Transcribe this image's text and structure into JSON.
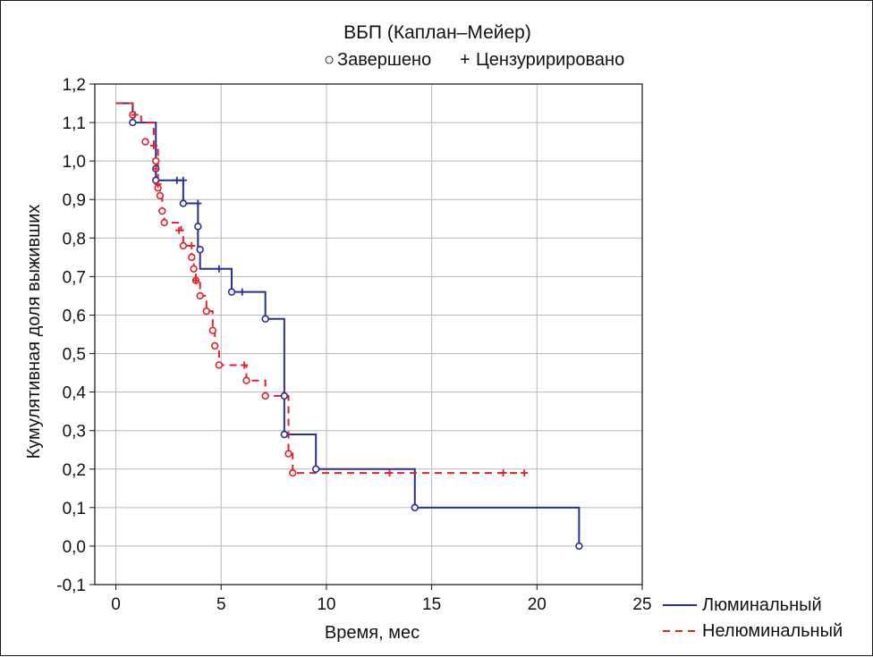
{
  "chart_data": {
    "type": "line",
    "subtype": "kaplan-meier-step",
    "title": "ВБП (Каплан–Мейер)",
    "marker_legend": {
      "completed": {
        "symbol": "○",
        "label": "Завершено"
      },
      "censored": {
        "symbol": "+",
        "label": "Цензуририровано"
      }
    },
    "xlabel": "Время, мес",
    "ylabel": "Кумулятивная доля выживших",
    "xlim": [
      -1,
      25
    ],
    "ylim": [
      -0.1,
      1.2
    ],
    "x_ticks": [
      0,
      5,
      10,
      15,
      20,
      25
    ],
    "x_tick_labels": [
      "0",
      "5",
      "10",
      "15",
      "20",
      "25"
    ],
    "y_ticks": [
      -0.1,
      0,
      0.1,
      0.2,
      0.3,
      0.4,
      0.5,
      0.6,
      0.7,
      0.8,
      0.9,
      1.0,
      1.1,
      1.2
    ],
    "y_tick_labels": [
      "-0,1",
      "0,0",
      "0,1",
      "0,2",
      "0,3",
      "0,4",
      "0,5",
      "0,6",
      "0,7",
      "0,8",
      "0,9",
      "1,0",
      "1,1",
      "1,2"
    ],
    "grid": true,
    "legend_position": "bottom-right",
    "series": [
      {
        "name": "Люминальный",
        "color": "#2b2f8f",
        "dash": "solid",
        "steps": [
          [
            0,
            1.15
          ],
          [
            0.8,
            1.1
          ],
          [
            1.9,
            0.95
          ],
          [
            3.2,
            0.89
          ],
          [
            3.9,
            0.77
          ],
          [
            4.0,
            0.72
          ],
          [
            5.5,
            0.66
          ],
          [
            7.1,
            0.59
          ],
          [
            8.0,
            0.39
          ],
          [
            8.0,
            0.29
          ],
          [
            9.5,
            0.2
          ],
          [
            14.2,
            0.1
          ],
          [
            22.0,
            0.0
          ]
        ],
        "end_x": 22.0,
        "events": [
          [
            0.8,
            1.1
          ],
          [
            1.9,
            0.98
          ],
          [
            1.9,
            0.95
          ],
          [
            3.2,
            0.89
          ],
          [
            3.9,
            0.83
          ],
          [
            4.0,
            0.77
          ],
          [
            5.5,
            0.66
          ],
          [
            7.1,
            0.59
          ],
          [
            8.0,
            0.39
          ],
          [
            8.0,
            0.29
          ],
          [
            9.5,
            0.2
          ],
          [
            14.2,
            0.1
          ],
          [
            22.0,
            0.0
          ]
        ],
        "censored": [
          [
            1.9,
            1.0
          ],
          [
            2.9,
            0.95
          ],
          [
            3.2,
            0.95
          ],
          [
            3.9,
            0.89
          ],
          [
            4.9,
            0.72
          ],
          [
            6.0,
            0.66
          ]
        ]
      },
      {
        "name": "Нелюминальный",
        "color": "#e0202a",
        "dash": "dashed",
        "steps": [
          [
            0,
            1.15
          ],
          [
            0.8,
            1.12
          ],
          [
            1.2,
            1.1
          ],
          [
            1.8,
            1.04
          ],
          [
            2.0,
            0.97
          ],
          [
            2.0,
            0.93
          ],
          [
            2.1,
            0.91
          ],
          [
            2.2,
            0.87
          ],
          [
            2.3,
            0.84
          ],
          [
            3.1,
            0.82
          ],
          [
            3.2,
            0.78
          ],
          [
            3.6,
            0.75
          ],
          [
            3.7,
            0.72
          ],
          [
            3.8,
            0.69
          ],
          [
            4.0,
            0.65
          ],
          [
            4.3,
            0.61
          ],
          [
            4.6,
            0.56
          ],
          [
            4.7,
            0.52
          ],
          [
            4.9,
            0.47
          ],
          [
            6.2,
            0.43
          ],
          [
            7.1,
            0.39
          ],
          [
            8.2,
            0.24
          ],
          [
            8.4,
            0.19
          ]
        ],
        "end_x": 19.4,
        "events": [
          [
            0.8,
            1.12
          ],
          [
            1.4,
            1.05
          ],
          [
            1.9,
            1.0
          ],
          [
            2.0,
            0.93
          ],
          [
            2.1,
            0.91
          ],
          [
            2.2,
            0.87
          ],
          [
            2.3,
            0.84
          ],
          [
            3.2,
            0.78
          ],
          [
            3.6,
            0.75
          ],
          [
            3.7,
            0.72
          ],
          [
            3.8,
            0.69
          ],
          [
            4.0,
            0.65
          ],
          [
            4.3,
            0.61
          ],
          [
            4.6,
            0.56
          ],
          [
            4.7,
            0.52
          ],
          [
            4.9,
            0.47
          ],
          [
            6.2,
            0.43
          ],
          [
            7.1,
            0.39
          ],
          [
            8.2,
            0.24
          ],
          [
            8.4,
            0.19
          ]
        ],
        "censored": [
          [
            0.9,
            1.12
          ],
          [
            1.8,
            1.04
          ],
          [
            1.9,
            0.98
          ],
          [
            2.0,
            0.94
          ],
          [
            3.0,
            0.82
          ],
          [
            3.6,
            0.78
          ],
          [
            3.8,
            0.69
          ],
          [
            6.1,
            0.47
          ],
          [
            13.0,
            0.19
          ],
          [
            18.4,
            0.19
          ],
          [
            19.4,
            0.19
          ]
        ]
      }
    ]
  }
}
